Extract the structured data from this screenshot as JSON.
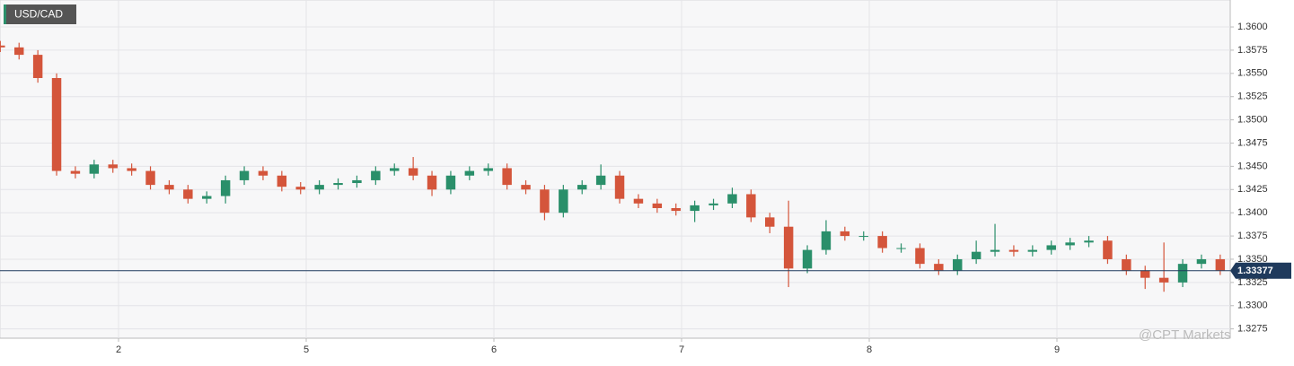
{
  "chart_data": {
    "type": "candlestick",
    "title": "USD/CAD",
    "watermark": "@CPT Markets",
    "x": [
      0.37,
      0.47,
      0.57,
      0.67,
      0.77,
      0.87,
      0.97,
      1.07,
      1.17,
      1.27,
      1.37,
      1.47,
      1.57,
      1.67,
      1.77,
      1.87,
      1.97,
      2.07,
      2.17,
      2.27,
      2.37,
      2.47,
      2.57,
      2.67,
      2.77,
      2.87,
      2.97,
      3.07,
      3.17,
      3.27,
      3.37,
      3.47,
      3.57,
      3.67,
      3.77,
      3.87,
      3.97,
      4.07,
      4.17,
      4.27,
      4.37,
      4.47,
      4.57,
      4.67,
      4.77,
      4.87,
      4.97,
      5.07,
      5.17,
      5.27,
      5.37,
      5.47,
      5.57,
      5.67,
      5.77,
      5.87,
      5.97,
      6.07,
      6.17,
      6.27,
      6.37,
      6.47,
      6.57,
      6.67,
      6.77,
      6.87
    ],
    "open": [
      1.358,
      1.3578,
      1.357,
      1.3545,
      1.3445,
      1.3442,
      1.3452,
      1.3448,
      1.3445,
      1.343,
      1.3425,
      1.3415,
      1.3418,
      1.3435,
      1.3445,
      1.344,
      1.3428,
      1.3425,
      1.343,
      1.3432,
      1.3435,
      1.3445,
      1.3448,
      1.344,
      1.3425,
      1.344,
      1.3445,
      1.3448,
      1.343,
      1.3425,
      1.34,
      1.3425,
      1.343,
      1.344,
      1.3415,
      1.341,
      1.3405,
      1.3402,
      1.3408,
      1.341,
      1.342,
      1.3395,
      1.3385,
      1.334,
      1.336,
      1.338,
      1.3375,
      1.3375,
      1.3362,
      1.3362,
      1.3345,
      1.3338,
      1.335,
      1.3358,
      1.336,
      1.3358,
      1.336,
      1.3365,
      1.3368,
      1.337,
      1.335,
      1.3338,
      1.333,
      1.3325,
      1.3345,
      1.335
    ],
    "high": [
      1.3585,
      1.3583,
      1.3575,
      1.355,
      1.345,
      1.3457,
      1.3457,
      1.3453,
      1.345,
      1.3435,
      1.343,
      1.3423,
      1.344,
      1.345,
      1.345,
      1.3445,
      1.3433,
      1.3435,
      1.3437,
      1.344,
      1.345,
      1.3453,
      1.346,
      1.3445,
      1.3445,
      1.345,
      1.3453,
      1.3453,
      1.3435,
      1.343,
      1.343,
      1.3435,
      1.3452,
      1.3445,
      1.342,
      1.3415,
      1.341,
      1.3413,
      1.3415,
      1.3427,
      1.3425,
      1.34,
      1.3413,
      1.3365,
      1.3392,
      1.3385,
      1.338,
      1.338,
      1.3367,
      1.3367,
      1.335,
      1.3355,
      1.337,
      1.3388,
      1.3365,
      1.3365,
      1.337,
      1.3373,
      1.3375,
      1.3375,
      1.3355,
      1.3343,
      1.3368,
      1.335,
      1.3355,
      1.3355
    ],
    "low": [
      1.3573,
      1.3565,
      1.354,
      1.344,
      1.3437,
      1.3437,
      1.3443,
      1.344,
      1.3425,
      1.342,
      1.341,
      1.341,
      1.341,
      1.343,
      1.3435,
      1.3423,
      1.342,
      1.342,
      1.3425,
      1.3427,
      1.343,
      1.344,
      1.3435,
      1.3418,
      1.342,
      1.3435,
      1.344,
      1.3425,
      1.342,
      1.3392,
      1.3395,
      1.342,
      1.3425,
      1.341,
      1.3405,
      1.34,
      1.3397,
      1.339,
      1.3403,
      1.3405,
      1.339,
      1.3378,
      1.332,
      1.3335,
      1.3355,
      1.337,
      1.337,
      1.3357,
      1.3357,
      1.334,
      1.3333,
      1.3333,
      1.3345,
      1.3353,
      1.3353,
      1.3353,
      1.3355,
      1.336,
      1.3363,
      1.3345,
      1.3333,
      1.3318,
      1.3315,
      1.332,
      1.334,
      1.3333
    ],
    "close": [
      1.3578,
      1.357,
      1.3545,
      1.3445,
      1.3442,
      1.3452,
      1.3448,
      1.3445,
      1.343,
      1.3425,
      1.3415,
      1.3418,
      1.3435,
      1.3445,
      1.344,
      1.3428,
      1.3425,
      1.343,
      1.3432,
      1.3435,
      1.3445,
      1.3448,
      1.344,
      1.3425,
      1.344,
      1.3445,
      1.3448,
      1.343,
      1.3425,
      1.34,
      1.3425,
      1.343,
      1.344,
      1.3415,
      1.341,
      1.3405,
      1.3402,
      1.3408,
      1.341,
      1.342,
      1.3395,
      1.3385,
      1.334,
      1.336,
      1.338,
      1.3375,
      1.3375,
      1.3362,
      1.3362,
      1.3345,
      1.3338,
      1.335,
      1.3358,
      1.336,
      1.3358,
      1.336,
      1.3365,
      1.3368,
      1.337,
      1.335,
      1.3338,
      1.333,
      1.3325,
      1.3345,
      1.335,
      1.3338
    ],
    "up_color": "#2a8f6a",
    "down_color": "#d4553b",
    "xlim": [
      0.3684,
      6.9234
    ],
    "xticks": [
      {
        "value": 1,
        "label": "2"
      },
      {
        "value": 2,
        "label": "5"
      },
      {
        "value": 3,
        "label": "6"
      },
      {
        "value": 4,
        "label": "7"
      },
      {
        "value": 5,
        "label": "8"
      },
      {
        "value": 6,
        "label": "9"
      }
    ],
    "ylim": [
      1.3265,
      1.3629
    ],
    "yticks": [
      1.3275,
      {
        "value": 1.33,
        "label": "1.3300"
      },
      1.3325,
      {
        "value": 1.335,
        "label": "1.3350"
      },
      1.3375,
      {
        "value": 1.34,
        "label": "1.3400"
      },
      1.3425,
      {
        "value": 1.345,
        "label": "1.3450"
      },
      1.3475,
      {
        "value": 1.35,
        "label": "1.3500"
      },
      1.3525,
      {
        "value": 1.355,
        "label": "1.3550"
      },
      1.3575,
      {
        "value": 1.36,
        "label": "1.3600"
      }
    ],
    "grid": true,
    "last_price": 1.33377,
    "last_price_color": "#1f3a5c"
  }
}
